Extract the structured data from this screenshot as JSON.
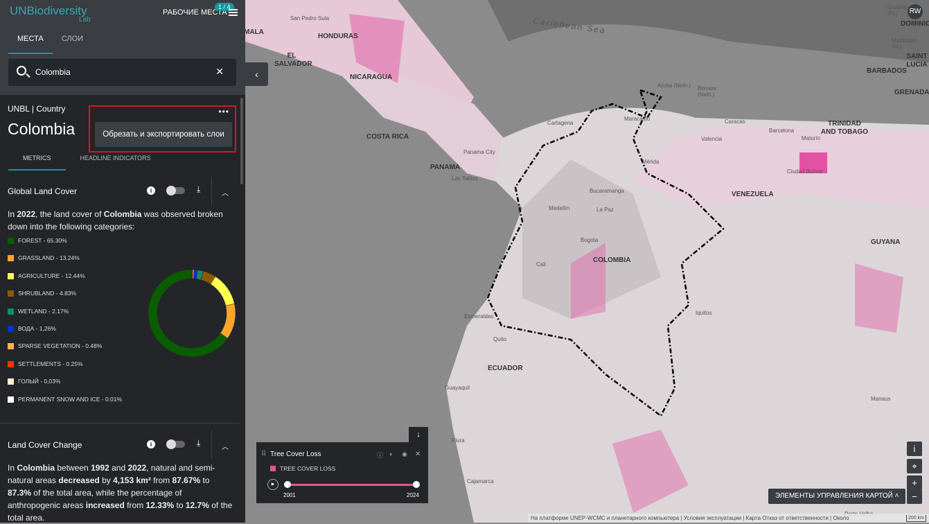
{
  "header": {
    "logo": "UNBiodiversity",
    "logo_sub": "Lab",
    "workspaces": "РАБОЧИЕ МЕСТА",
    "workspace_badge": "1 / 4"
  },
  "tabs": [
    {
      "label": "МЕСТА",
      "active": true
    },
    {
      "label": "СЛОИ",
      "active": false
    }
  ],
  "search": {
    "value": "Colombia",
    "icon": "search-icon",
    "clear_icon": "close-icon"
  },
  "place": {
    "source": "UNBL | Country",
    "name": "Colombia",
    "menu_item": "Обрезать и экспортировать слои",
    "subtabs": [
      "METRICS",
      "HEADLINE INDICATORS"
    ]
  },
  "global_land_cover": {
    "title": "Global Land Cover",
    "desc_pre": "In ",
    "year": "2022",
    "desc_mid": ", the land cover of ",
    "country": "Colombia",
    "desc_post": " was observed broken down into the following categories:"
  },
  "chart_data": {
    "type": "pie",
    "donut": true,
    "categories": [
      "FOREST",
      "GRASSLAND",
      "AGRICULTURE",
      "SHRUBLAND",
      "WETLAND",
      "ВОДА",
      "SPARSE VEGETATION",
      "SETTLEMENTS",
      "ГОЛЫЙ",
      "PERMANENT SNOW AND ICE"
    ],
    "labels": [
      "FOREST - 65.30%",
      "GRASSLAND - 13.24%",
      "AGRICULTURE - 12.44%",
      "SHRUBLAND - 4.83%",
      "WETLAND - 2.17%",
      "ВОДА - 1,26%",
      "SPARSE VEGETATION - 0.48%",
      "SETTLEMENTS - 0.25%",
      "ГОЛЫЙ - 0,03%",
      "PERMANENT SNOW AND ICE - 0.01%"
    ],
    "values": [
      65.3,
      13.24,
      12.44,
      4.83,
      2.17,
      1.26,
      0.48,
      0.25,
      0.03,
      0.01
    ],
    "colors": [
      "#0a5c00",
      "#f9a62b",
      "#ffff4d",
      "#8c5a00",
      "#0f8c6e",
      "#0033cc",
      "#ffb347",
      "#ff3300",
      "#fff0c8",
      "#ffffff"
    ]
  },
  "land_cover_change": {
    "title": "Land Cover Change",
    "parts": [
      [
        "In ",
        false
      ],
      [
        "Colombia",
        true
      ],
      [
        " between ",
        false
      ],
      [
        "1992",
        true
      ],
      [
        " and ",
        false
      ],
      [
        "2022",
        true
      ],
      [
        ", natural and semi-natural areas ",
        false
      ],
      [
        "decreased",
        true
      ],
      [
        " by ",
        false
      ],
      [
        "4,153 km²",
        true
      ],
      [
        " from ",
        false
      ],
      [
        "87.67%",
        true
      ],
      [
        " to ",
        false
      ],
      [
        "87.3%",
        true
      ],
      [
        " of the total area, while the percentage of anthropogenic areas ",
        false
      ],
      [
        "increased",
        true
      ],
      [
        " from ",
        false
      ],
      [
        "12.33%",
        true
      ],
      [
        " to ",
        false
      ],
      [
        "12.7%",
        true
      ],
      [
        " of the total area.",
        false
      ]
    ]
  },
  "map": {
    "countries": [
      "MALA",
      "HONDURAS",
      "EL SALVADOR",
      "NICARAGUA",
      "COSTA RICA",
      "PANAMA",
      "COLOMBIA",
      "VENEZUELA",
      "ECUADOR",
      "GUYANA",
      "DOMINICA",
      "SAINT LUCIA",
      "BARBADOS",
      "GRENADA",
      "TRINIDAD AND TOBAGO"
    ],
    "cities": [
      "San Pedro Sula",
      "Panama City",
      "Las Tablas",
      "Cartagena",
      "Maracaibo",
      "Caracas",
      "Valencia",
      "Barcelona",
      "Maturín",
      "Mérida",
      "Bucaramanga",
      "Medellín",
      "La Paz",
      "Bogota",
      "Cali",
      "Quito",
      "Guayaquil",
      "Piura",
      "Cajamarca",
      "Ciudad Bolívar",
      "Manaus",
      "Aruba (Neth.)",
      "Bonaire (Neth.)",
      "Guadeloupe (Fr.)",
      "Martinique (Fr.)",
      "Esmeraldas",
      "Iquitos",
      "Porto Velho"
    ],
    "sea": "Caribbean Sea",
    "user": "RW"
  },
  "layer": {
    "name": "Tree Cover Loss",
    "legend": "TREE COVER LOSS",
    "color": "#e5568e",
    "start": "2001",
    "end": "2024",
    "range_fraction": [
      0,
      1
    ]
  },
  "controls": {
    "map_controls": "ЭЛЕМЕНТЫ УПРАВЛЕНИЯ КАРТОЙ",
    "info": "i",
    "zoom_in": "+",
    "zoom_out": "−"
  },
  "attribution": "На платформе UNEP-WCMC и планетарного компьютера | Условия эксплуатации | Карта Отказ от ответственности | Около",
  "scale": "200 km"
}
